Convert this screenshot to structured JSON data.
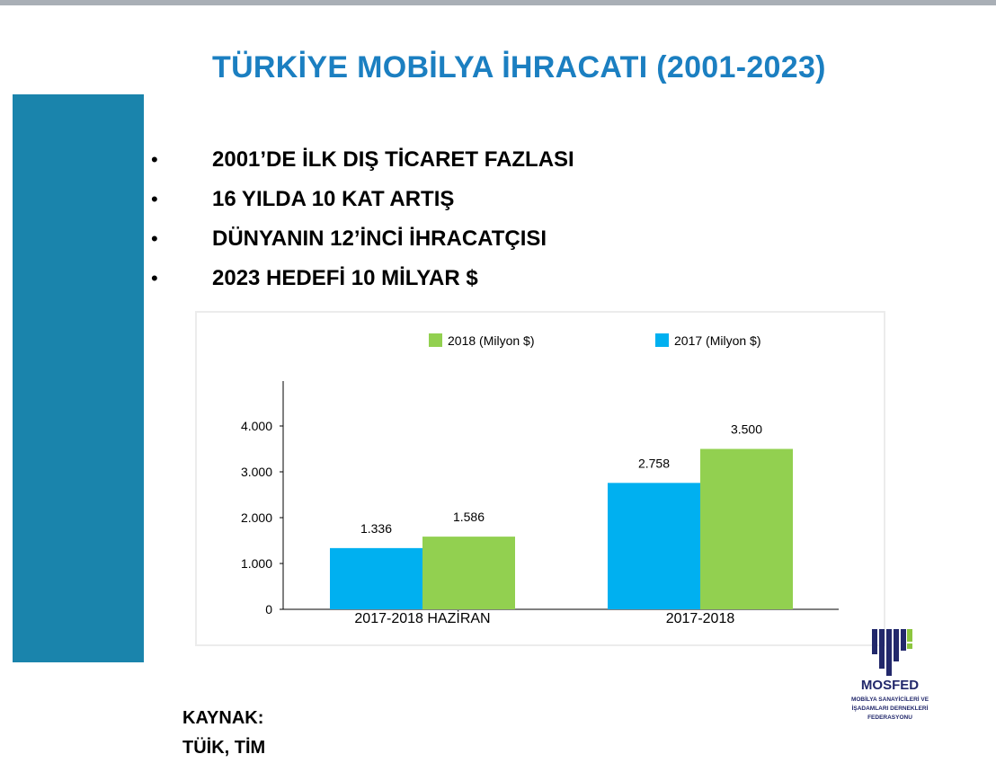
{
  "slide": {
    "title": "TÜRKİYE MOBİLYA İHRACATI (2001-2023)",
    "bullets": [
      "2001’DE İLK DIŞ TİCARET FAZLASI",
      "16 YILDA 10 KAT ARTIŞ",
      "DÜNYANIN 12’İNCİ İHRACATÇISI",
      "2023 HEDEFİ 10 MİLYAR $"
    ],
    "bullet_symbol": "•",
    "source_label": "KAYNAK:",
    "source_value": "TÜİK, TİM"
  },
  "logo": {
    "name": "MOSFED",
    "subtitle_line1": "MOBİLYA SANAYİCİLERİ VE",
    "subtitle_line2": "İŞADAMLARI DERNEKLERİ FEDERASYONU",
    "color": "#22286b",
    "accent": "#8dc63f"
  },
  "chart_data": {
    "type": "bar",
    "categories": [
      "2017-2018 HAZİRAN",
      "2017-2018"
    ],
    "series": [
      {
        "name": "2017 (Milyon $)",
        "values": [
          1336,
          2758
        ],
        "labels": [
          "1.336",
          "2.758"
        ],
        "color": "#00b0f0"
      },
      {
        "name": "2018 (Milyon $)",
        "values": [
          1586,
          3500
        ],
        "labels": [
          "1.586",
          "3.500"
        ],
        "color": "#92d050"
      }
    ],
    "legend_order": [
      1,
      0
    ],
    "legend_position": "top",
    "ylim": [
      0,
      4000
    ],
    "yticks": [
      0,
      1000,
      2000,
      3000,
      4000
    ],
    "ytick_labels": [
      "0",
      "1.000",
      "2.000",
      "3.000",
      "4.000"
    ],
    "grid": false,
    "title": "",
    "xlabel": "",
    "ylabel": ""
  }
}
